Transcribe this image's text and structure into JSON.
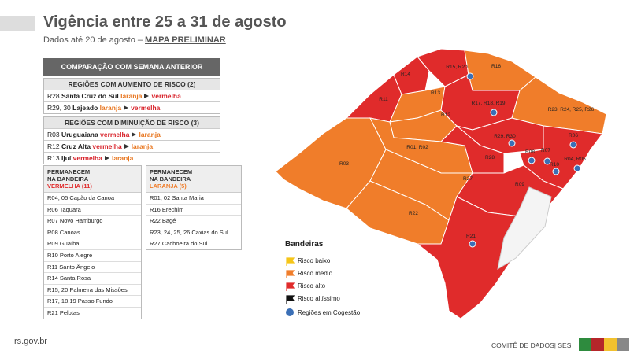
{
  "header": {
    "title": "Vigência entre 25 a 31 de agosto",
    "subtitle": "Dados até 20 de agosto –",
    "subtitle_link": "MAPA PRELIMINAR"
  },
  "comparison": {
    "title": "COMPARAÇÃO COM SEMANA ANTERIOR",
    "increase": {
      "heading": "REGIÕES  COM AUMENTO DE RISCO (2)",
      "rows": [
        {
          "region": "R28",
          "name": "Santa Cruz do Sul",
          "from": "laranja",
          "to": "vermelha"
        },
        {
          "region": "R29, 30",
          "name": "Lajeado",
          "from": "laranja",
          "to": "vermelha"
        }
      ]
    },
    "decrease": {
      "heading": "REGIÕES  COM DIMINUIÇÃO DE RISCO (3)",
      "rows": [
        {
          "region": "R03",
          "name": "Uruguaiana",
          "from": "vermelha",
          "to": "laranja"
        },
        {
          "region": "R12",
          "name": "Cruz Alta",
          "from": "vermelha",
          "to": "laranja"
        },
        {
          "region": "R13",
          "name": "Ijuí",
          "from": "vermelha",
          "to": "laranja"
        }
      ]
    }
  },
  "remain": [
    {
      "heading": "PERMANECEM  NA BANDEIRA",
      "flag": "VERMELHA (11)",
      "color": "#e02b2b",
      "items": [
        "R04, 05 Capão da Canoa",
        "R06 Taquara",
        "R07 Novo Hamburgo",
        "R08 Canoas",
        "R09 Guaíba",
        "R10 Porto Alegre",
        "R11 Santo Ângelo",
        "R14 Santa Rosa",
        "R15, 20 Palmeira das Missões",
        "R17, 18,19 Passo Fundo",
        "R21 Pelotas"
      ]
    },
    {
      "heading": "PERMANECEM  NA BANDEIRA",
      "flag": "LARANJA  (5)",
      "color": "#f07d2a",
      "items": [
        "R01, 02 Santa Maria",
        "R16 Erechim",
        "R22 Bagé",
        "R23, 24, 25, 26 Caxias do Sul",
        "R27 Cachoeira do Sul"
      ]
    }
  ],
  "map": {
    "regions": [
      {
        "label": "R03",
        "color": "#f07d2a"
      },
      {
        "label": "R11",
        "color": "#e02b2b"
      },
      {
        "label": "R14",
        "color": "#e02b2b"
      },
      {
        "label": "R15, R20",
        "color": "#e02b2b"
      },
      {
        "label": "R13",
        "color": "#f07d2a"
      },
      {
        "label": "R16",
        "color": "#f07d2a"
      },
      {
        "label": "R12",
        "color": "#f07d2a"
      },
      {
        "label": "R01, R02",
        "color": "#f07d2a"
      },
      {
        "label": "R17, R18, R19",
        "color": "#e02b2b"
      },
      {
        "label": "R23, R24, R25, R26",
        "color": "#f07d2a"
      },
      {
        "label": "R29, R30",
        "color": "#e02b2b"
      },
      {
        "label": "R06",
        "color": "#e02b2b"
      },
      {
        "label": "R28",
        "color": "#e02b2b"
      },
      {
        "label": "R27",
        "color": "#f07d2a"
      },
      {
        "label": "R09",
        "color": "#e02b2b"
      },
      {
        "label": "R22",
        "color": "#f07d2a"
      },
      {
        "label": "R21",
        "color": "#e02b2b"
      },
      {
        "label": "R07",
        "color": "#e02b2b"
      },
      {
        "label": "R08",
        "color": "#e02b2b"
      },
      {
        "label": "R10",
        "color": "#e02b2b"
      },
      {
        "label": "R04, R05",
        "color": "#e02b2b"
      }
    ]
  },
  "legend": {
    "title": "Bandeiras",
    "items": [
      {
        "label": "Risco baixo",
        "color": "#f5c518"
      },
      {
        "label": "Risco médio",
        "color": "#f07d2a"
      },
      {
        "label": "Risco alto",
        "color": "#e02b2b"
      },
      {
        "label": "Risco altíssimo",
        "color": "#111111"
      }
    ],
    "cogestao": "Regiões em Cogestão"
  },
  "footer": {
    "site": "rs.gov.br",
    "credit": "COMITÊ DE DADOS| SES"
  }
}
